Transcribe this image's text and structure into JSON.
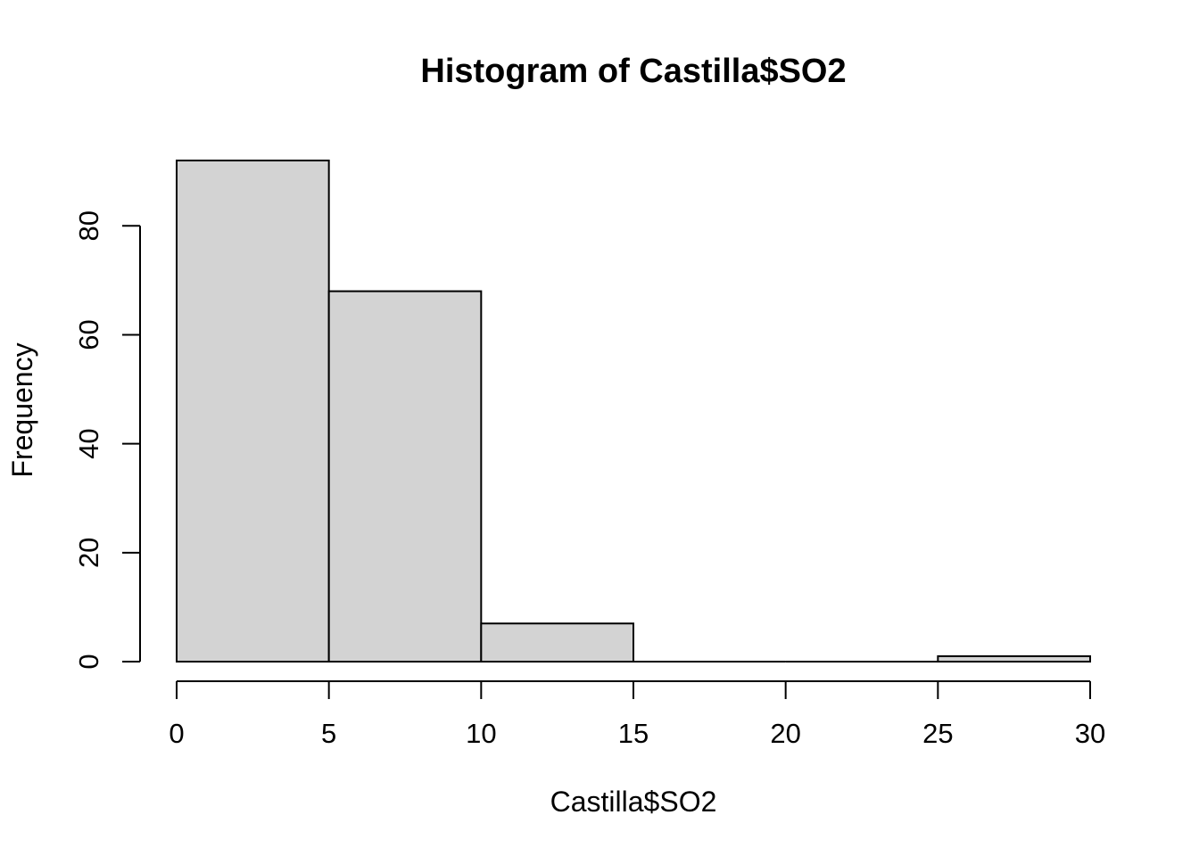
{
  "chart_data": {
    "type": "bar",
    "title": "Histogram of Castilla$SO2",
    "xlabel": "Castilla$SO2",
    "ylabel": "Frequency",
    "bins": [
      {
        "start": 0,
        "end": 5,
        "count": 92
      },
      {
        "start": 5,
        "end": 10,
        "count": 68
      },
      {
        "start": 10,
        "end": 15,
        "count": 7
      },
      {
        "start": 15,
        "end": 20,
        "count": 0
      },
      {
        "start": 20,
        "end": 25,
        "count": 0
      },
      {
        "start": 25,
        "end": 30,
        "count": 1
      }
    ],
    "xlim": [
      0,
      30
    ],
    "ylim": [
      0,
      92
    ],
    "x_ticks": [
      "0",
      "5",
      "10",
      "15",
      "20",
      "25",
      "30"
    ],
    "y_ticks": [
      "0",
      "20",
      "40",
      "60",
      "80"
    ],
    "bar_color": "#d3d3d3",
    "bar_border_color": "#000000",
    "grid": false,
    "legend": "none"
  }
}
